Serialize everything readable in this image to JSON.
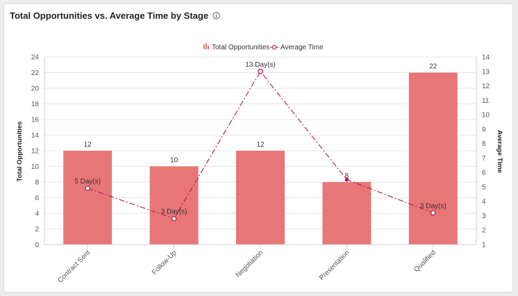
{
  "header": {
    "title": "Total Opportunities vs. Average Time by Stage",
    "info_icon": "info-circle-icon"
  },
  "chart_data": {
    "type": "bar",
    "categories": [
      "Contract Sent",
      "Follow-Up",
      "Negotiation",
      "Presentation",
      "Qualified"
    ],
    "series": [
      {
        "name": "Total Opportunities",
        "type": "bar",
        "axis": "left",
        "values": [
          12,
          10,
          12,
          8,
          22
        ],
        "labels": [
          "12",
          "10",
          "12",
          "8",
          "22"
        ],
        "color": "#e87676"
      },
      {
        "name": "Average Time",
        "type": "line",
        "axis": "right",
        "line_style": "dash-dot",
        "values": [
          4.9,
          2.8,
          13,
          5.5,
          3.2
        ],
        "labels": [
          "5 Day(s)",
          "3 Day(s)",
          "13 Day(s)",
          "",
          "3 Day(s)"
        ],
        "color": "#b0245a"
      }
    ],
    "ylabel": "Total Opportunities",
    "ylim": [
      0,
      24
    ],
    "yticks": [
      0,
      2,
      4,
      6,
      8,
      10,
      12,
      14,
      16,
      18,
      20,
      22,
      24
    ],
    "y2label": "Average Time",
    "y2lim": [
      1,
      14
    ],
    "y2ticks": [
      1,
      2,
      3,
      4,
      5,
      6,
      7,
      8,
      9,
      10,
      11,
      12,
      13,
      14
    ],
    "legend_position": "top-center",
    "grid": true
  }
}
